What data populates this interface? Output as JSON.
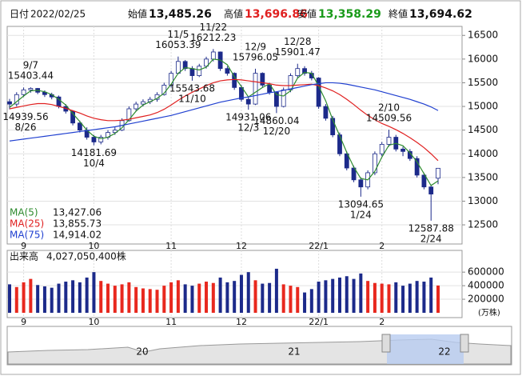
{
  "header": {
    "date_label": "日付",
    "date": "2022/02/25",
    "open_label": "始値",
    "open": "13,485.26",
    "high_label": "高値",
    "high": "13,696.86",
    "low_label": "安値",
    "low": "13,358.29",
    "close_label": "終値",
    "close": "13,694.62"
  },
  "chart_data": {
    "type": "candlestick",
    "categories": [
      null,
      null,
      "9",
      null,
      null,
      null,
      null,
      null,
      null,
      null,
      null,
      null,
      "10",
      null,
      null,
      null,
      null,
      null,
      null,
      null,
      null,
      null,
      null,
      "11",
      null,
      null,
      null,
      null,
      null,
      null,
      null,
      null,
      null,
      "12",
      null,
      null,
      null,
      null,
      null,
      null,
      null,
      null,
      null,
      null,
      "22/1",
      null,
      null,
      null,
      null,
      null,
      null,
      null,
      null,
      "2",
      null,
      null,
      null,
      null,
      null,
      null,
      null,
      null
    ],
    "ohlc": [
      [
        15100,
        15160,
        14939.56,
        15050
      ],
      [
        15050,
        15300,
        15000,
        15250
      ],
      [
        15250,
        15400,
        15200,
        15350
      ],
      [
        15350,
        15403.44,
        15290,
        15380
      ],
      [
        15380,
        15390,
        15260,
        15300
      ],
      [
        15300,
        15340,
        15200,
        15250
      ],
      [
        15250,
        15290,
        15150,
        15200
      ],
      [
        15200,
        15230,
        14960,
        15000
      ],
      [
        15000,
        15050,
        14850,
        14900
      ],
      [
        14900,
        14920,
        14600,
        14650
      ],
      [
        14650,
        14700,
        14450,
        14500
      ],
      [
        14500,
        14560,
        14300,
        14350
      ],
      [
        14350,
        14400,
        14181.69,
        14250
      ],
      [
        14250,
        14400,
        14200,
        14350
      ],
      [
        14350,
        14500,
        14300,
        14450
      ],
      [
        14450,
        14560,
        14400,
        14500
      ],
      [
        14500,
        14750,
        14480,
        14700
      ],
      [
        14700,
        15000,
        14680,
        14950
      ],
      [
        14950,
        15100,
        14900,
        15050
      ],
      [
        15050,
        15150,
        15000,
        15100
      ],
      [
        15100,
        15200,
        15050,
        15150
      ],
      [
        15150,
        15300,
        15100,
        15250
      ],
      [
        15250,
        15500,
        15230,
        15450
      ],
      [
        15450,
        15750,
        15400,
        15700
      ],
      [
        15700,
        16053.39,
        15680,
        15950
      ],
      [
        15950,
        15980,
        15750,
        15800
      ],
      [
        15800,
        15850,
        15543.68,
        15650
      ],
      [
        15650,
        15900,
        15620,
        15850
      ],
      [
        15850,
        16050,
        15800,
        16000
      ],
      [
        16000,
        16212.23,
        15950,
        16150
      ],
      [
        16150,
        16160,
        15750,
        15800
      ],
      [
        15800,
        15850,
        15650,
        15700
      ],
      [
        15700,
        15720,
        15350,
        15400
      ],
      [
        15400,
        15450,
        15100,
        15150
      ],
      [
        15150,
        15200,
        14931.06,
        15050
      ],
      [
        15050,
        15796.05,
        15030,
        15700
      ],
      [
        15700,
        15720,
        15400,
        15450
      ],
      [
        15450,
        15500,
        15250,
        15300
      ],
      [
        15300,
        15320,
        14860.04,
        15000
      ],
      [
        15000,
        15400,
        14980,
        15350
      ],
      [
        15350,
        15700,
        15300,
        15650
      ],
      [
        15650,
        15901.47,
        15600,
        15800
      ],
      [
        15800,
        15850,
        15650,
        15700
      ],
      [
        15700,
        15750,
        15550,
        15600
      ],
      [
        15600,
        15620,
        14950,
        15000
      ],
      [
        15000,
        15050,
        14700,
        14750
      ],
      [
        14750,
        14800,
        14350,
        14400
      ],
      [
        14400,
        14450,
        13950,
        14000
      ],
      [
        14000,
        14050,
        13650,
        13700
      ],
      [
        13700,
        13750,
        13400,
        13450
      ],
      [
        13450,
        13500,
        13094.65,
        13300
      ],
      [
        13300,
        13650,
        13250,
        13600
      ],
      [
        13600,
        14050,
        13550,
        14000
      ],
      [
        14000,
        14250,
        13950,
        14200
      ],
      [
        14200,
        14509.56,
        14150,
        14350
      ],
      [
        14350,
        14400,
        14050,
        14100
      ],
      [
        14100,
        14150,
        13950,
        14050
      ],
      [
        14050,
        14100,
        13850,
        13900
      ],
      [
        13900,
        13950,
        13500,
        13550
      ],
      [
        13550,
        13600,
        13250,
        13300
      ],
      [
        13300,
        13350,
        12587.88,
        13150
      ],
      [
        13485.26,
        13696.86,
        13358.29,
        13694.62
      ]
    ],
    "up_color": "#ffffff",
    "down_color": "#1c2a8a",
    "ylim": [
      12180,
      16690
    ],
    "yticks": [
      12500,
      13000,
      13500,
      14000,
      14500,
      15000,
      15500,
      16000,
      16500
    ],
    "grid": true,
    "series": [
      {
        "name": "MA(5)",
        "color": "#2e8b2e",
        "legend_value": "13,427.06",
        "values": [
          14980,
          15100,
          15220,
          15330,
          15340,
          15310,
          15250,
          15150,
          15030,
          14850,
          14680,
          14500,
          14370,
          14320,
          14350,
          14430,
          14550,
          14720,
          14900,
          15030,
          15100,
          15170,
          15280,
          15470,
          15700,
          15820,
          15800,
          15770,
          15830,
          16000,
          15980,
          15880,
          15630,
          15420,
          15200,
          15300,
          15400,
          15480,
          15250,
          15220,
          15330,
          15600,
          15720,
          15700,
          15430,
          15120,
          14720,
          14380,
          14030,
          13720,
          13480,
          13450,
          13630,
          13930,
          14180,
          14220,
          14170,
          14020,
          13830,
          13580,
          13330,
          13427.06
        ]
      },
      {
        "name": "MA(25)",
        "color": "#e02020",
        "legend_value": "13,855.73",
        "values": [
          14950,
          14980,
          15010,
          15040,
          15060,
          15060,
          15040,
          15000,
          14960,
          14910,
          14860,
          14800,
          14750,
          14720,
          14700,
          14700,
          14710,
          14730,
          14760,
          14790,
          14820,
          14870,
          14940,
          15030,
          15130,
          15220,
          15300,
          15370,
          15440,
          15500,
          15540,
          15560,
          15570,
          15560,
          15540,
          15520,
          15500,
          15480,
          15450,
          15440,
          15440,
          15450,
          15460,
          15470,
          15440,
          15390,
          15330,
          15250,
          15150,
          15040,
          14920,
          14810,
          14720,
          14640,
          14580,
          14510,
          14430,
          14340,
          14240,
          14130,
          14000,
          13855.73
        ]
      },
      {
        "name": "MA(75)",
        "color": "#2040d0",
        "legend_value": "14,914.02",
        "values": [
          14270,
          14290,
          14310,
          14330,
          14350,
          14370,
          14390,
          14410,
          14430,
          14450,
          14470,
          14490,
          14510,
          14530,
          14550,
          14570,
          14600,
          14630,
          14660,
          14690,
          14720,
          14750,
          14780,
          14810,
          14850,
          14890,
          14930,
          14970,
          15010,
          15050,
          15090,
          15120,
          15150,
          15180,
          15200,
          15230,
          15260,
          15290,
          15310,
          15340,
          15370,
          15400,
          15430,
          15460,
          15480,
          15500,
          15500,
          15490,
          15470,
          15440,
          15410,
          15380,
          15350,
          15310,
          15270,
          15230,
          15190,
          15150,
          15100,
          15050,
          14990,
          14914.02
        ]
      }
    ],
    "annotations": [
      {
        "date": "8/26",
        "value": 14939.56
      },
      {
        "date": "9/7",
        "value": 15403.44
      },
      {
        "date": "10/4",
        "value": 14181.69
      },
      {
        "date": "11/5",
        "value": 16053.39
      },
      {
        "date": "11/10",
        "value": 15543.68
      },
      {
        "date": "11/22",
        "value": 16212.23
      },
      {
        "date": "12/3",
        "value": 14931.06
      },
      {
        "date": "12/9",
        "value": 15796.05
      },
      {
        "date": "12/20",
        "value": 14860.04
      },
      {
        "date": "12/28",
        "value": 15901.47
      },
      {
        "date": "1/24",
        "value": 13094.65
      },
      {
        "date": "2/10",
        "value": 14509.56
      },
      {
        "date": "2/24",
        "value": 12587.88
      }
    ],
    "volume": {
      "label": "出来高",
      "total": "4,027,050,400株",
      "unit": "(万株)",
      "up_color": "#e8281e",
      "down_color": "#1c2a8a",
      "ylim": [
        0,
        720000
      ],
      "yticks": [
        200000,
        400000,
        600000
      ],
      "values": [
        420000,
        380000,
        450000,
        500000,
        410000,
        390000,
        370000,
        430000,
        460000,
        480000,
        450000,
        520000,
        600000,
        470000,
        430000,
        400000,
        420000,
        450000,
        380000,
        360000,
        350000,
        340000,
        400000,
        450000,
        480000,
        420000,
        400000,
        430000,
        460000,
        440000,
        520000,
        450000,
        470000,
        560000,
        600000,
        480000,
        430000,
        440000,
        650000,
        420000,
        400000,
        380000,
        300000,
        350000,
        460000,
        480000,
        500000,
        520000,
        540000,
        500000,
        580000,
        470000,
        440000,
        430000,
        420000,
        450000,
        400000,
        430000,
        470000,
        460000,
        520000,
        402705
      ]
    },
    "navigator": {
      "labels": [
        "20",
        "21",
        "22"
      ]
    }
  }
}
